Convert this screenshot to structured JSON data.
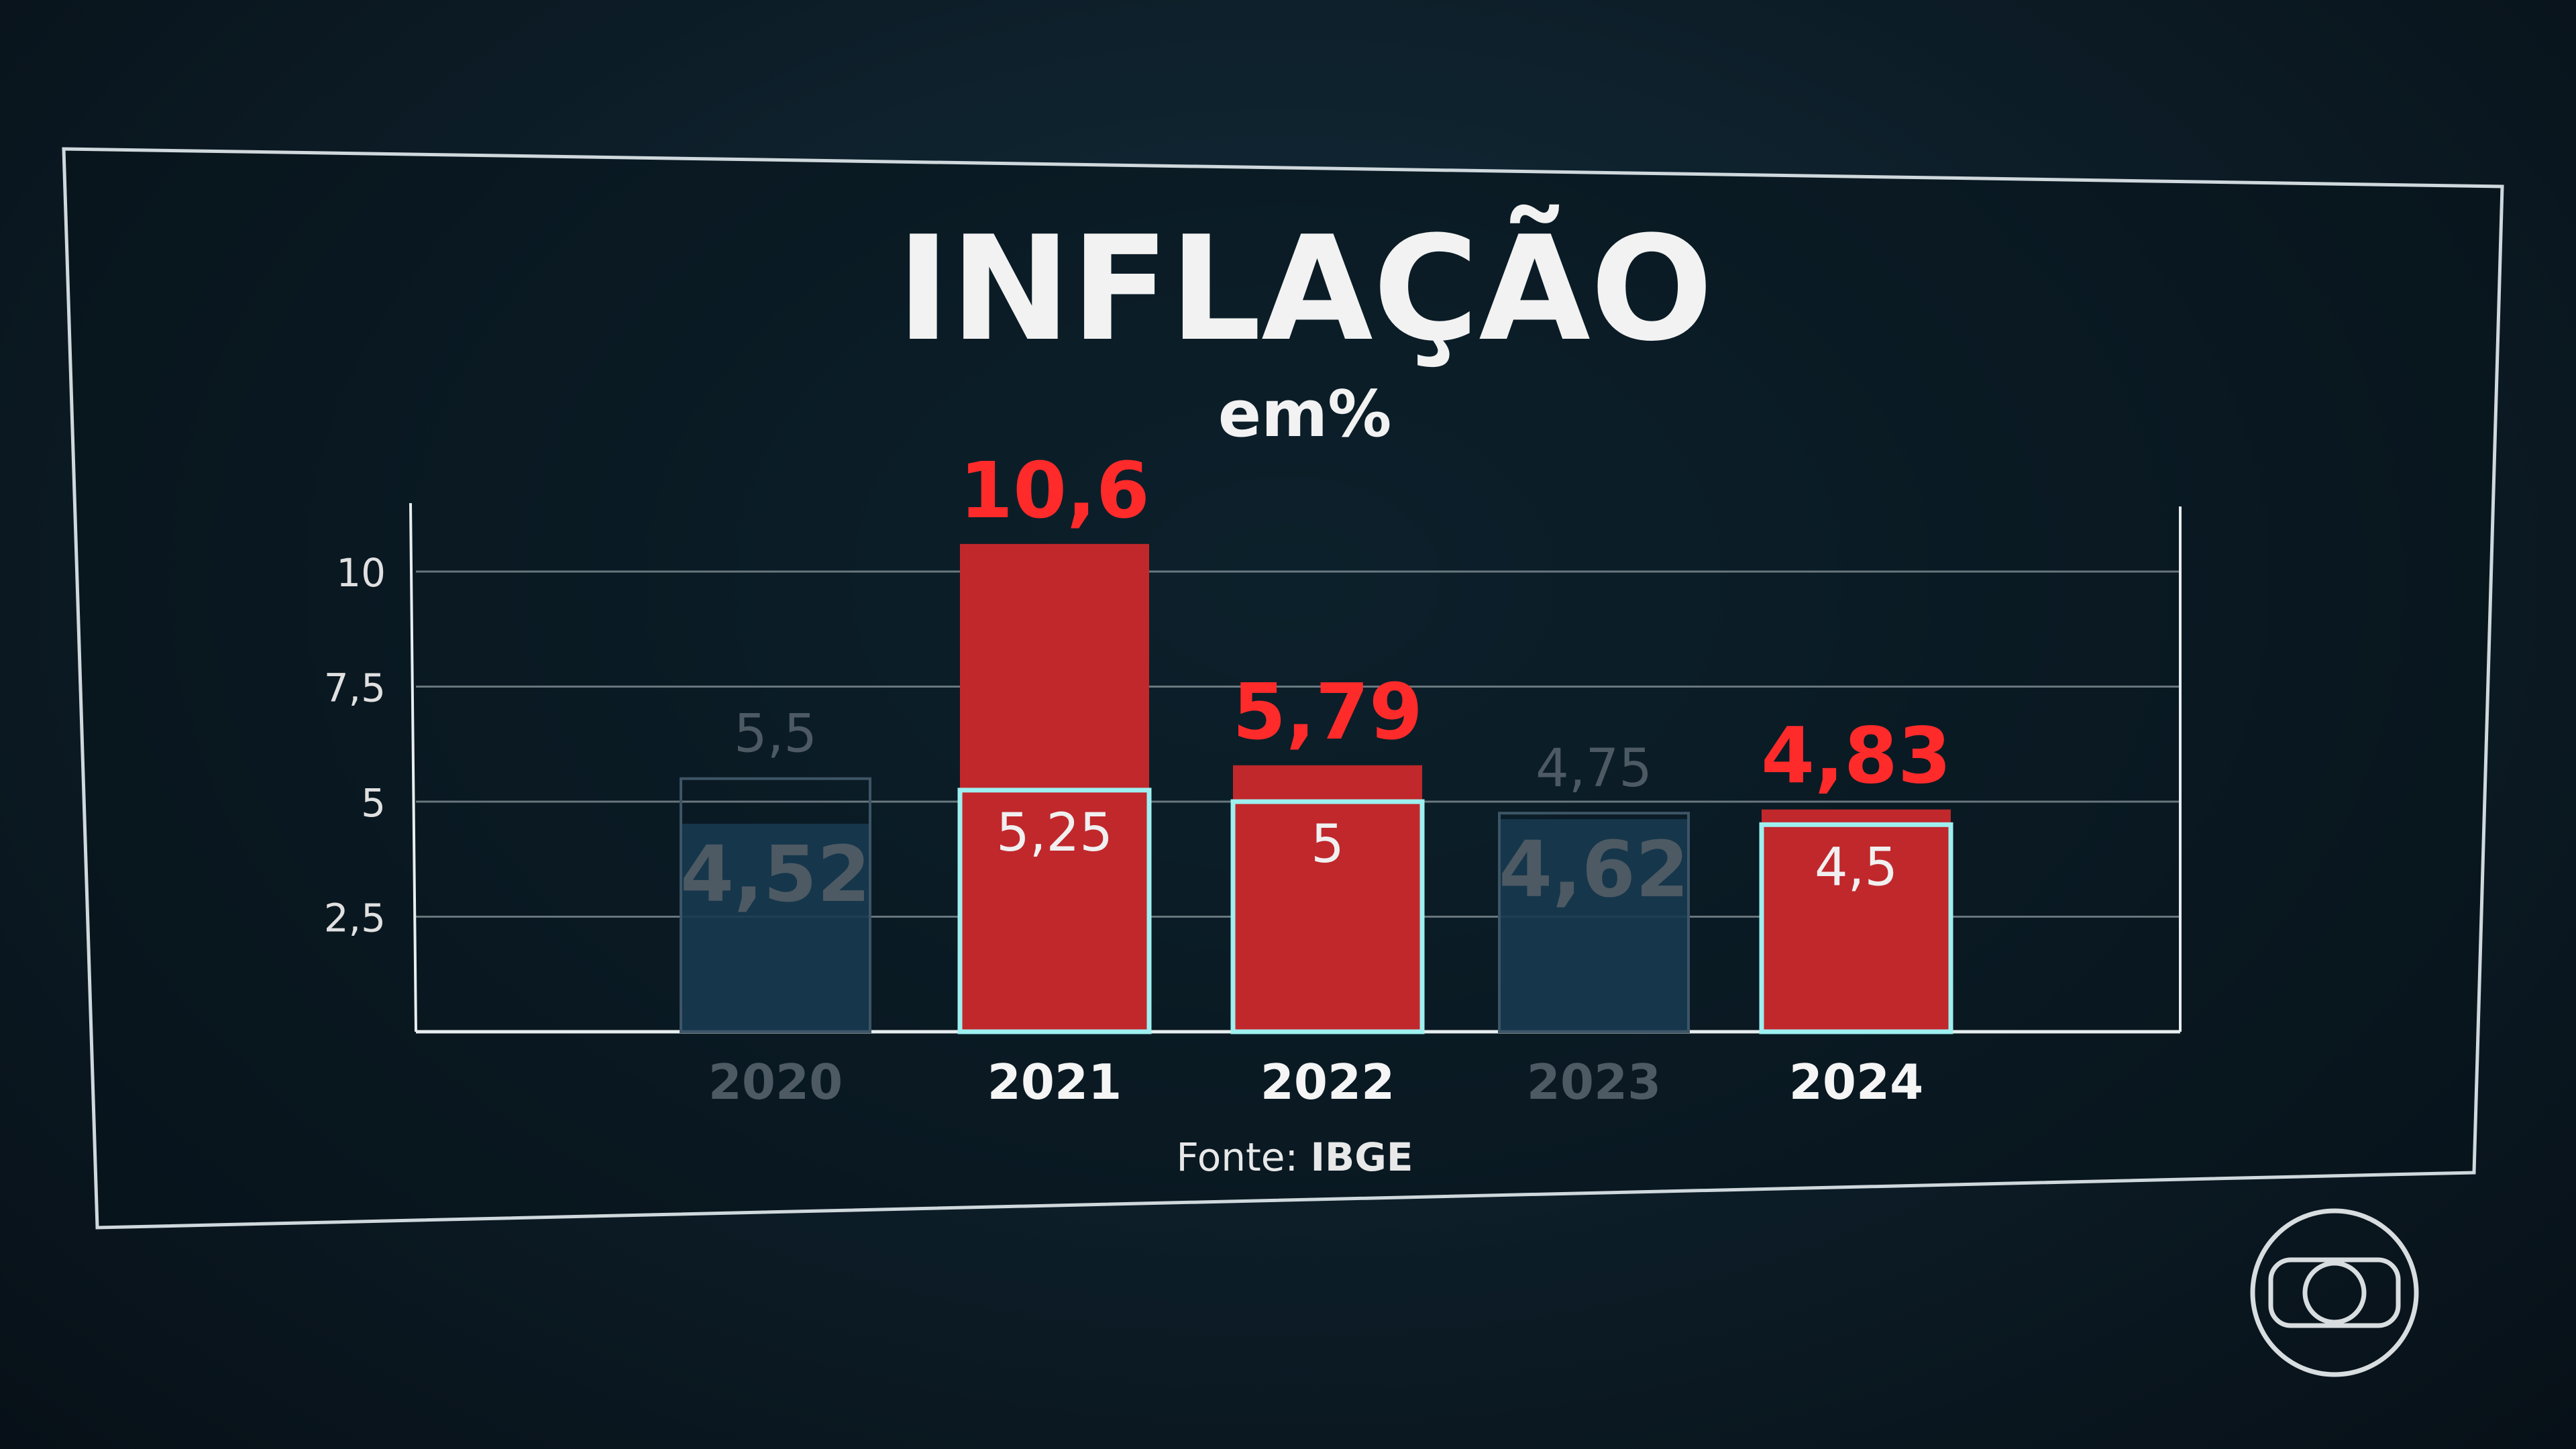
{
  "colors": {
    "exceeded": "#c0282c",
    "within": "#173a50",
    "target_outline": "#9ef0f0",
    "label_red": "#ff2a2a",
    "label_muted": "#4d5a63",
    "text": "#ffffff"
  },
  "chart_data": {
    "type": "bar",
    "title": "INFLAÇÃO",
    "subtitle": "em%",
    "categories": [
      "2020",
      "2021",
      "2022",
      "2023",
      "2024"
    ],
    "series": [
      {
        "values": [
          4.52,
          10.6,
          5.79,
          4.62,
          4.83
        ],
        "labels": [
          "4,52",
          "10,6",
          "5,79",
          "4,62",
          "4,83"
        ]
      },
      {
        "values": [
          5.5,
          5.25,
          5,
          4.75,
          4.5
        ],
        "labels": [
          "5,5",
          "5,25",
          "5",
          "4,75",
          "4,5"
        ]
      }
    ],
    "exceeded": [
      false,
      true,
      true,
      false,
      true
    ],
    "yticks": [
      2.5,
      5,
      7.5,
      10
    ],
    "ytick_labels": [
      "2,5",
      "5",
      "7,5",
      "10"
    ],
    "ylim": [
      0,
      10.6
    ],
    "grid": true,
    "source_label": "Fonte:",
    "source": "IBGE"
  },
  "logo": "globo-logo"
}
